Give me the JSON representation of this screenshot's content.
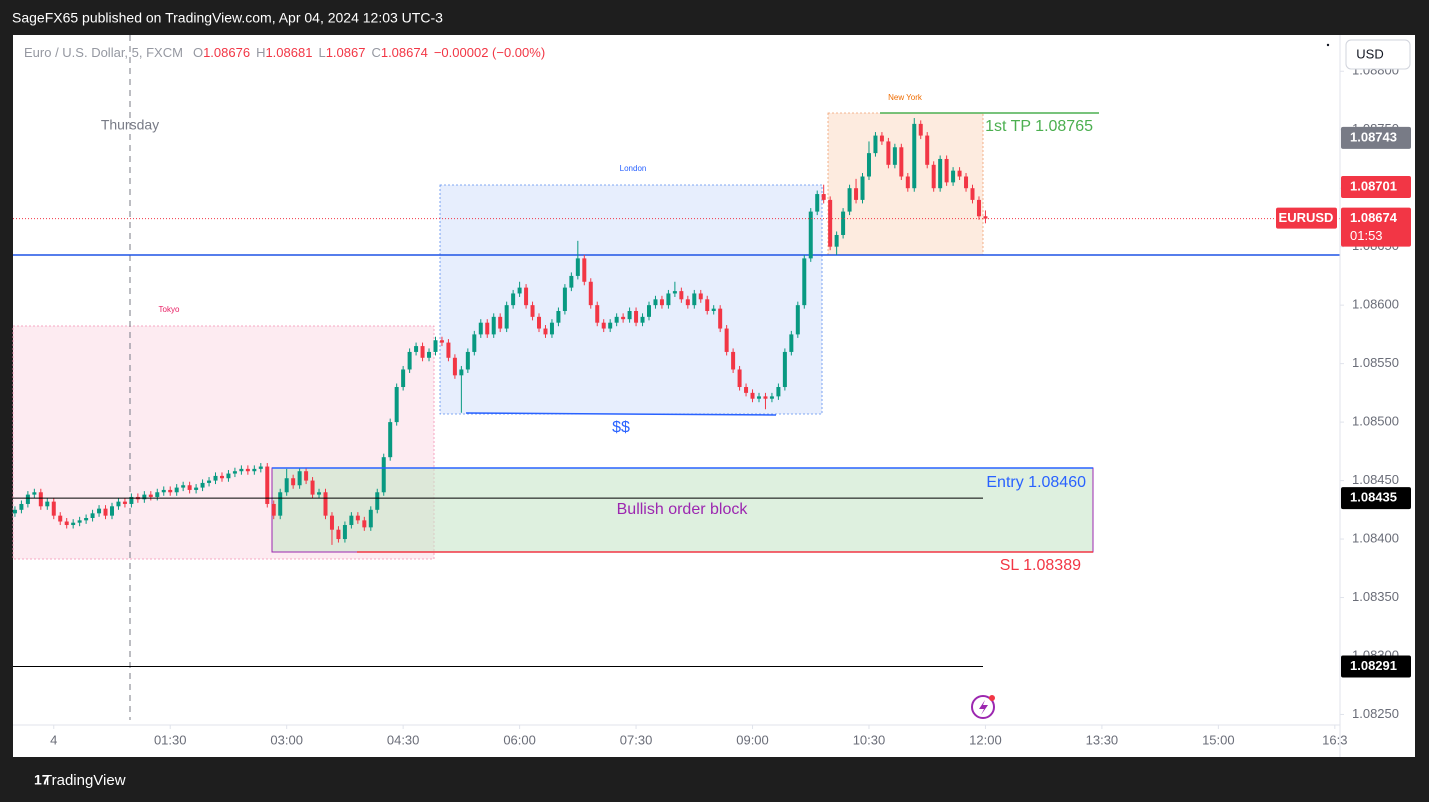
{
  "header": {
    "publisher": "SageFX65 published on TradingView.com, Apr 04, 2024 12:03 UTC-3",
    "brand": "TradingView"
  },
  "chart_data": {
    "type": "candlestick",
    "symbol_line": "Euro / U.S. Dollar, 5, FXCM",
    "ohlc_legend": {
      "labels": [
        "O",
        "H",
        "L",
        "C"
      ],
      "values": [
        1.08676,
        1.08681,
        1.0867,
        1.08674
      ],
      "change": "−0.00002 (−0.00%)"
    },
    "currency": "USD",
    "up_color": "#089981",
    "down_color": "#f23645",
    "xlim": [
      -0.3,
      204.8
    ],
    "ylim": [
      1.08241,
      1.08831
    ],
    "xticks": [
      {
        "value": 6,
        "label": "4"
      },
      {
        "value": 24,
        "label": "01:30"
      },
      {
        "value": 42,
        "label": "03:00"
      },
      {
        "value": 60,
        "label": "04:30"
      },
      {
        "value": 78,
        "label": "06:00"
      },
      {
        "value": 96,
        "label": "07:30"
      },
      {
        "value": 114,
        "label": "09:00"
      },
      {
        "value": 132,
        "label": "10:30"
      },
      {
        "value": 150,
        "label": "12:00"
      },
      {
        "value": 168,
        "label": "13:30"
      },
      {
        "value": 186,
        "label": "15:00"
      },
      {
        "value": 204,
        "label": "16:3"
      }
    ],
    "yticks": [
      {
        "value": 1.0825,
        "label": "1.08250"
      },
      {
        "value": 1.083,
        "label": "1.08300"
      },
      {
        "value": 1.0835,
        "label": "1.08350"
      },
      {
        "value": 1.084,
        "label": "1.08400"
      },
      {
        "value": 1.0845,
        "label": "1.08450"
      },
      {
        "value": 1.085,
        "label": "1.08500"
      },
      {
        "value": 1.0855,
        "label": "1.08550"
      },
      {
        "value": 1.086,
        "label": "1.08600"
      },
      {
        "value": 1.0865,
        "label": "1.08650"
      },
      {
        "value": 1.087,
        "label": "1.08700"
      },
      {
        "value": 1.0875,
        "label": "1.08750"
      },
      {
        "value": 1.088,
        "label": "1.08800"
      }
    ],
    "price_labels": [
      {
        "value": 1.08743,
        "color": "#787b86",
        "line": false
      },
      {
        "value": 1.08701,
        "color": "#f23645",
        "line": false
      },
      {
        "value": 1.08435,
        "color": "#000000",
        "line": true
      },
      {
        "value": 1.08291,
        "color": "#000000",
        "line": true
      }
    ],
    "last_price": {
      "symbol": "EURUSD",
      "value": 1.08674,
      "countdown": "01:53"
    },
    "annotations": {
      "thursday": "Thursday",
      "tokyo": "Tokyo",
      "london": "London",
      "new_york": "New York",
      "tp": "1st TP 1.08765",
      "entry": "Entry  1.08460",
      "sl": "SL 1.08389",
      "order_block": "Bullish order block",
      "liquidity": "$$"
    },
    "candles": [
      [
        1.08422,
        1.08428,
        1.08419,
        1.08425
      ],
      [
        1.08425,
        1.08433,
        1.08422,
        1.0843
      ],
      [
        1.0843,
        1.08441,
        1.08427,
        1.08438
      ],
      [
        1.08438,
        1.08443,
        1.08435,
        1.0844
      ],
      [
        1.0844,
        1.08443,
        1.08425,
        1.08428
      ],
      [
        1.08428,
        1.08435,
        1.08425,
        1.08432
      ],
      [
        1.08432,
        1.08435,
        1.08417,
        1.0842
      ],
      [
        1.0842,
        1.08423,
        1.08412,
        1.08415
      ],
      [
        1.08415,
        1.08418,
        1.08409,
        1.08412
      ],
      [
        1.08412,
        1.08417,
        1.08409,
        1.08414
      ],
      [
        1.08414,
        1.08419,
        1.08411,
        1.08416
      ],
      [
        1.08416,
        1.08421,
        1.08413,
        1.08418
      ],
      [
        1.08418,
        1.08425,
        1.08415,
        1.08422
      ],
      [
        1.08422,
        1.08429,
        1.08419,
        1.08426
      ],
      [
        1.08426,
        1.08429,
        1.08417,
        1.0842
      ],
      [
        1.0842,
        1.08431,
        1.08417,
        1.08428
      ],
      [
        1.08428,
        1.08435,
        1.08425,
        1.08432
      ],
      [
        1.08432,
        1.08435,
        1.08427,
        1.0843
      ],
      [
        1.0843,
        1.08439,
        1.08427,
        1.08436
      ],
      [
        1.08436,
        1.08439,
        1.08431,
        1.08434
      ],
      [
        1.08434,
        1.08441,
        1.08431,
        1.08438
      ],
      [
        1.08438,
        1.08441,
        1.08433,
        1.08436
      ],
      [
        1.08436,
        1.08443,
        1.08433,
        1.0844
      ],
      [
        1.0844,
        1.08445,
        1.08437,
        1.08442
      ],
      [
        1.08442,
        1.08445,
        1.08437,
        1.0844
      ],
      [
        1.0844,
        1.08447,
        1.08437,
        1.08444
      ],
      [
        1.08444,
        1.08449,
        1.08441,
        1.08446
      ],
      [
        1.08446,
        1.08449,
        1.08439,
        1.08442
      ],
      [
        1.08442,
        1.08447,
        1.08439,
        1.08444
      ],
      [
        1.08444,
        1.08451,
        1.08441,
        1.08448
      ],
      [
        1.08448,
        1.08453,
        1.08445,
        1.0845
      ],
      [
        1.0845,
        1.08457,
        1.08447,
        1.08454
      ],
      [
        1.08454,
        1.08457,
        1.08449,
        1.08452
      ],
      [
        1.08452,
        1.08459,
        1.08449,
        1.08456
      ],
      [
        1.08456,
        1.08461,
        1.08453,
        1.08458
      ],
      [
        1.08458,
        1.08463,
        1.08455,
        1.0846
      ],
      [
        1.0846,
        1.08463,
        1.08455,
        1.08458
      ],
      [
        1.08458,
        1.08463,
        1.08455,
        1.0846
      ],
      [
        1.0846,
        1.08465,
        1.08457,
        1.08462
      ],
      [
        1.08462,
        1.08465,
        1.08427,
        1.0843
      ],
      [
        1.0843,
        1.08433,
        1.08417,
        1.0842
      ],
      [
        1.0842,
        1.08443,
        1.08417,
        1.0844
      ],
      [
        1.0844,
        1.0846,
        1.08437,
        1.08452
      ],
      [
        1.08452,
        1.08455,
        1.08443,
        1.08446
      ],
      [
        1.08446,
        1.08461,
        1.08443,
        1.08458
      ],
      [
        1.08458,
        1.08461,
        1.08447,
        1.0845
      ],
      [
        1.0845,
        1.08453,
        1.08435,
        1.08438
      ],
      [
        1.08438,
        1.08443,
        1.08435,
        1.0844
      ],
      [
        1.0844,
        1.08443,
        1.08417,
        1.0842
      ],
      [
        1.0842,
        1.08423,
        1.08395,
        1.08408
      ],
      [
        1.08408,
        1.08411,
        1.08397,
        1.084
      ],
      [
        1.084,
        1.08415,
        1.08397,
        1.08412
      ],
      [
        1.08412,
        1.08423,
        1.08409,
        1.0842
      ],
      [
        1.0842,
        1.08423,
        1.08413,
        1.08416
      ],
      [
        1.08416,
        1.08419,
        1.08407,
        1.0841
      ],
      [
        1.0841,
        1.08428,
        1.08407,
        1.08425
      ],
      [
        1.08425,
        1.08443,
        1.08422,
        1.0844
      ],
      [
        1.0844,
        1.08473,
        1.08437,
        1.0847
      ],
      [
        1.0847,
        1.08503,
        1.08467,
        1.085
      ],
      [
        1.085,
        1.08533,
        1.08497,
        1.0853
      ],
      [
        1.0853,
        1.08548,
        1.08527,
        1.08545
      ],
      [
        1.08545,
        1.08563,
        1.08542,
        1.0856
      ],
      [
        1.0856,
        1.08568,
        1.08557,
        1.08565
      ],
      [
        1.08565,
        1.08568,
        1.08552,
        1.08555
      ],
      [
        1.08555,
        1.08563,
        1.08552,
        1.0856
      ],
      [
        1.0856,
        1.08573,
        1.08557,
        1.0857
      ],
      [
        1.0857,
        1.08573,
        1.08565,
        1.08568
      ],
      [
        1.08568,
        1.08571,
        1.08552,
        1.08555
      ],
      [
        1.08555,
        1.08558,
        1.08537,
        1.0854
      ],
      [
        1.0854,
        1.08548,
        1.08508,
        1.08545
      ],
      [
        1.08545,
        1.08563,
        1.08542,
        1.0856
      ],
      [
        1.0856,
        1.08578,
        1.08557,
        1.08575
      ],
      [
        1.08575,
        1.08588,
        1.08572,
        1.08585
      ],
      [
        1.08585,
        1.08588,
        1.08572,
        1.08575
      ],
      [
        1.08575,
        1.08593,
        1.08572,
        1.0859
      ],
      [
        1.0859,
        1.08593,
        1.08577,
        1.0858
      ],
      [
        1.0858,
        1.08603,
        1.08577,
        1.086
      ],
      [
        1.086,
        1.08613,
        1.08597,
        1.0861
      ],
      [
        1.0861,
        1.0862,
        1.08607,
        1.08615
      ],
      [
        1.08615,
        1.08618,
        1.08597,
        1.086
      ],
      [
        1.086,
        1.08603,
        1.08587,
        1.0859
      ],
      [
        1.0859,
        1.08593,
        1.08577,
        1.0858
      ],
      [
        1.0858,
        1.08583,
        1.08572,
        1.08575
      ],
      [
        1.08575,
        1.08588,
        1.08572,
        1.08585
      ],
      [
        1.08585,
        1.08598,
        1.08582,
        1.08595
      ],
      [
        1.08595,
        1.08618,
        1.08592,
        1.08615
      ],
      [
        1.08615,
        1.08628,
        1.08612,
        1.08625
      ],
      [
        1.08625,
        1.08655,
        1.08622,
        1.0864
      ],
      [
        1.0864,
        1.08643,
        1.08617,
        1.0862
      ],
      [
        1.0862,
        1.08623,
        1.08597,
        1.086
      ],
      [
        1.086,
        1.08603,
        1.08582,
        1.08585
      ],
      [
        1.08585,
        1.08588,
        1.08577,
        1.0858
      ],
      [
        1.0858,
        1.08588,
        1.08577,
        1.08585
      ],
      [
        1.08585,
        1.08593,
        1.08582,
        1.0859
      ],
      [
        1.0859,
        1.08593,
        1.08585,
        1.08588
      ],
      [
        1.08588,
        1.08598,
        1.08585,
        1.08595
      ],
      [
        1.08595,
        1.08598,
        1.08582,
        1.08585
      ],
      [
        1.08585,
        1.08593,
        1.08582,
        1.0859
      ],
      [
        1.0859,
        1.08603,
        1.08587,
        1.086
      ],
      [
        1.086,
        1.08608,
        1.08597,
        1.08605
      ],
      [
        1.08605,
        1.08608,
        1.08597,
        1.086
      ],
      [
        1.086,
        1.08613,
        1.08597,
        1.0861
      ],
      [
        1.0861,
        1.0862,
        1.08607,
        1.08612
      ],
      [
        1.08612,
        1.08615,
        1.08602,
        1.08605
      ],
      [
        1.08605,
        1.08608,
        1.08597,
        1.086
      ],
      [
        1.086,
        1.08613,
        1.08597,
        1.0861
      ],
      [
        1.0861,
        1.08613,
        1.08602,
        1.08605
      ],
      [
        1.08605,
        1.08608,
        1.08592,
        1.08595
      ],
      [
        1.08595,
        1.086,
        1.08592,
        1.08597
      ],
      [
        1.08597,
        1.086,
        1.08577,
        1.0858
      ],
      [
        1.0858,
        1.08583,
        1.08557,
        1.0856
      ],
      [
        1.0856,
        1.08563,
        1.08542,
        1.08545
      ],
      [
        1.08545,
        1.08548,
        1.08527,
        1.0853
      ],
      [
        1.0853,
        1.08533,
        1.08522,
        1.08525
      ],
      [
        1.08525,
        1.08528,
        1.08517,
        1.0852
      ],
      [
        1.0852,
        1.08525,
        1.08517,
        1.08522
      ],
      [
        1.08522,
        1.08525,
        1.08511,
        1.0852
      ],
      [
        1.0852,
        1.08525,
        1.08517,
        1.08522
      ],
      [
        1.08522,
        1.08533,
        1.08519,
        1.0853
      ],
      [
        1.0853,
        1.08563,
        1.08527,
        1.0856
      ],
      [
        1.0856,
        1.08578,
        1.08557,
        1.08575
      ],
      [
        1.08575,
        1.08603,
        1.08572,
        1.086
      ],
      [
        1.086,
        1.08643,
        1.08597,
        1.0864
      ],
      [
        1.0864,
        1.08683,
        1.08637,
        1.0868
      ],
      [
        1.0868,
        1.08698,
        1.08677,
        1.08695
      ],
      [
        1.08695,
        1.08703,
        1.08687,
        1.0869
      ],
      [
        1.0869,
        1.08693,
        1.08647,
        1.0865
      ],
      [
        1.0865,
        1.08663,
        1.08643,
        1.0866
      ],
      [
        1.0866,
        1.08683,
        1.08657,
        1.0868
      ],
      [
        1.0868,
        1.08703,
        1.08677,
        1.087
      ],
      [
        1.087,
        1.08708,
        1.08687,
        1.0869
      ],
      [
        1.0869,
        1.08713,
        1.08687,
        1.0871
      ],
      [
        1.0871,
        1.0874,
        1.08707,
        1.0873
      ],
      [
        1.0873,
        1.08748,
        1.08727,
        1.08745
      ],
      [
        1.08745,
        1.08748,
        1.08737,
        1.0874
      ],
      [
        1.0874,
        1.08743,
        1.08717,
        1.0872
      ],
      [
        1.0872,
        1.08738,
        1.08717,
        1.08735
      ],
      [
        1.08735,
        1.08738,
        1.08707,
        1.0871
      ],
      [
        1.0871,
        1.08713,
        1.08697,
        1.087
      ],
      [
        1.087,
        1.0876,
        1.08697,
        1.08755
      ],
      [
        1.08755,
        1.08758,
        1.08742,
        1.08745
      ],
      [
        1.08745,
        1.08748,
        1.08717,
        1.0872
      ],
      [
        1.0872,
        1.08723,
        1.08697,
        1.087
      ],
      [
        1.087,
        1.08728,
        1.08697,
        1.08725
      ],
      [
        1.08725,
        1.08728,
        1.08702,
        1.08705
      ],
      [
        1.08705,
        1.08718,
        1.08702,
        1.08715
      ],
      [
        1.08715,
        1.08718,
        1.08707,
        1.0871
      ],
      [
        1.0871,
        1.08713,
        1.08697,
        1.087
      ],
      [
        1.087,
        1.08703,
        1.08687,
        1.0869
      ],
      [
        1.0869,
        1.08693,
        1.08673,
        1.08676
      ],
      [
        1.08676,
        1.08681,
        1.0867,
        1.08674
      ]
    ]
  }
}
